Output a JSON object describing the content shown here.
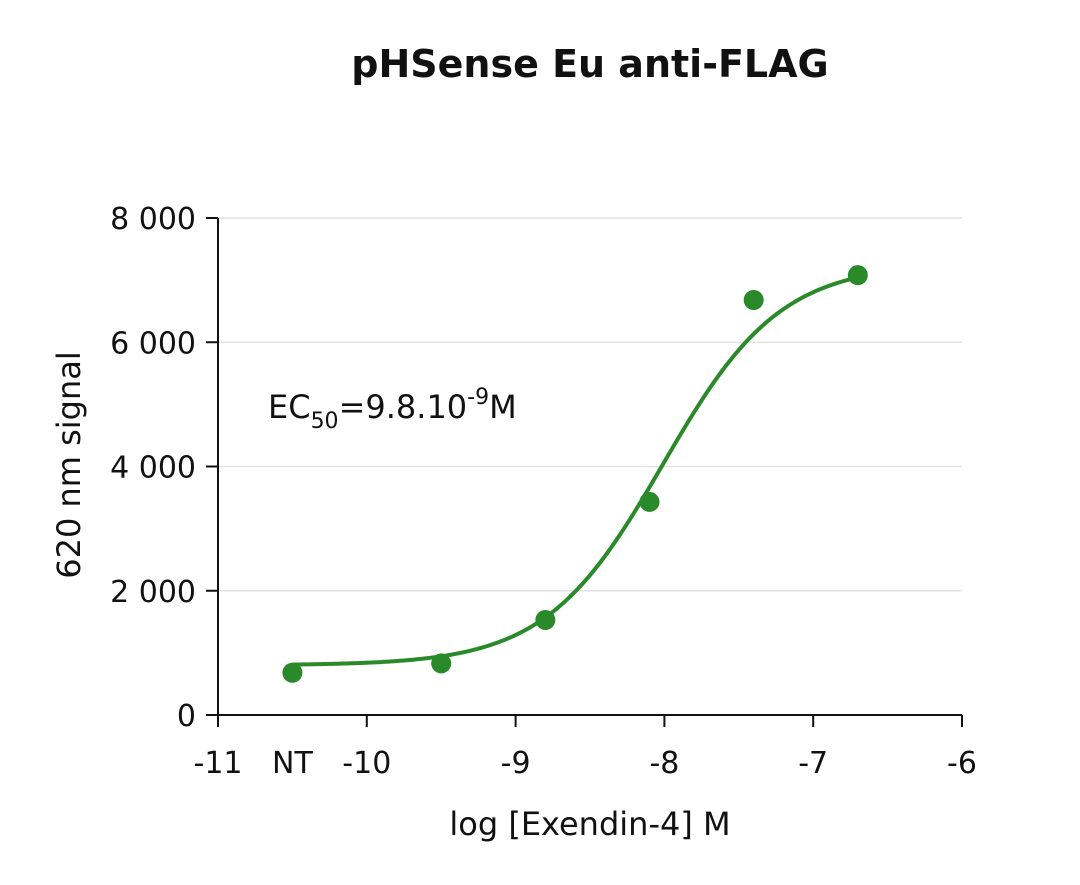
{
  "chart_data": {
    "type": "scatter",
    "title": "pHSense Eu anti-FLAG",
    "xlabel": "log [Exendin-4] M",
    "ylabel": "620 nm signal",
    "xlim": [
      -11,
      -6
    ],
    "ylim": [
      0,
      8000
    ],
    "x_ticks": [
      {
        "value": -11,
        "label": "-11"
      },
      {
        "value": -10,
        "label": "-10"
      },
      {
        "value": -9,
        "label": "-9"
      },
      {
        "value": -8,
        "label": "-8"
      },
      {
        "value": -7,
        "label": "-7"
      },
      {
        "value": -6,
        "label": "-6"
      }
    ],
    "x_extra_label": {
      "value": -10.5,
      "label": "NT"
    },
    "y_ticks": [
      {
        "value": 0,
        "label": "0"
      },
      {
        "value": 2000,
        "label": "2 000"
      },
      {
        "value": 4000,
        "label": "4 000"
      },
      {
        "value": 6000,
        "label": "6 000"
      },
      {
        "value": 8000,
        "label": "8 000"
      }
    ],
    "grid": "horizontal",
    "series": [
      {
        "color": "#2a8a2a",
        "points": [
          {
            "x": -10.5,
            "y": 680
          },
          {
            "x": -9.5,
            "y": 830
          },
          {
            "x": -8.8,
            "y": 1530
          },
          {
            "x": -8.1,
            "y": 3430
          },
          {
            "x": -7.4,
            "y": 6680
          },
          {
            "x": -6.7,
            "y": 7080
          }
        ],
        "fit": {
          "model": "4PL",
          "bottom": 800,
          "top": 7270,
          "log_ec50": -8.01,
          "hill": 1.1,
          "x_range": [
            -10.5,
            -6.7
          ]
        }
      }
    ],
    "annotation": {
      "prefix": "EC",
      "sub": "50",
      "mid": "=9.8.10",
      "sup": "-9",
      "suffix": "M"
    }
  }
}
